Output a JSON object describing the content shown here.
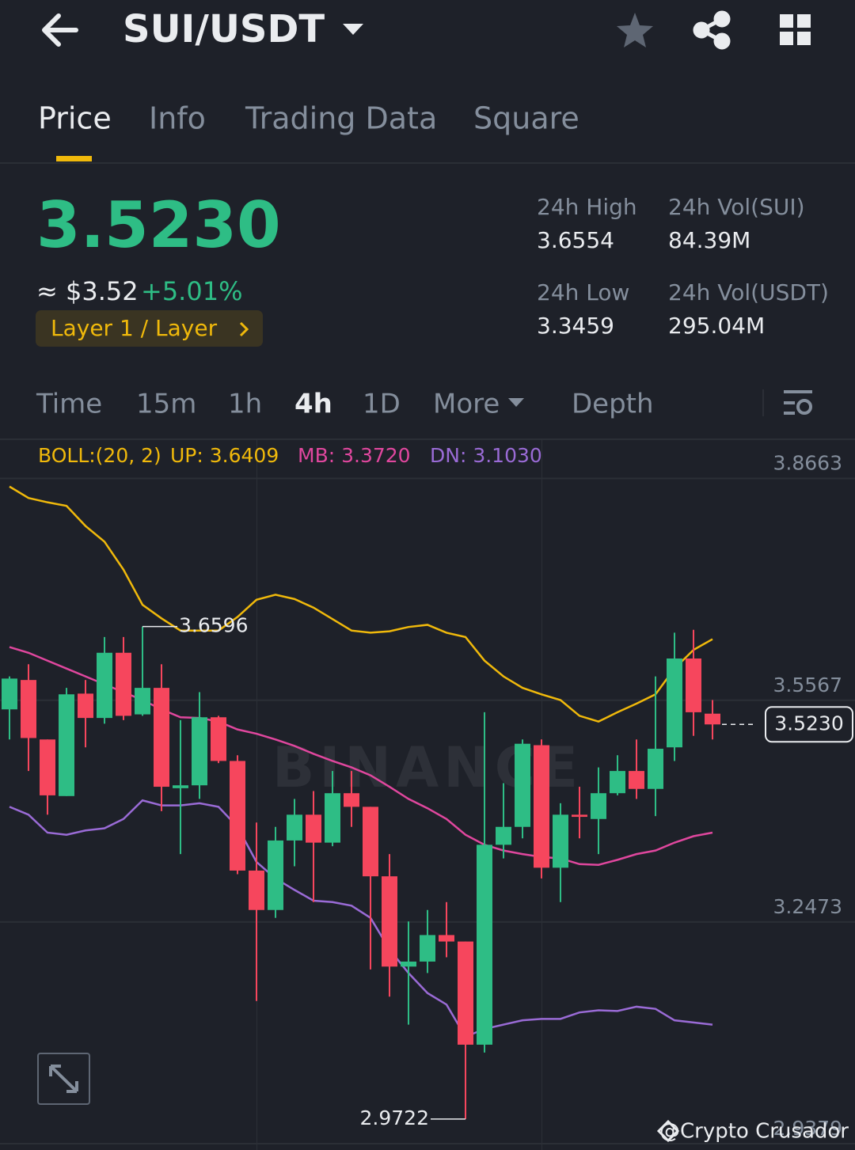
{
  "header": {
    "pair": "SUI/USDT"
  },
  "tabs": [
    "Price",
    "Info",
    "Trading Data",
    "Square"
  ],
  "price": {
    "last": "3.5230",
    "fiat": "≈ $3.52",
    "change": "+5.01%",
    "tag": "Layer 1 / Layer"
  },
  "stats": [
    {
      "label": "24h High",
      "value": "3.6554"
    },
    {
      "label": "24h Vol(SUI)",
      "value": "84.39M"
    },
    {
      "label": "24h Low",
      "value": "3.3459"
    },
    {
      "label": "24h Vol(USDT)",
      "value": "295.04M"
    }
  ],
  "intervals": [
    "Time",
    "15m",
    "1h",
    "4h",
    "1D",
    "More",
    "Depth"
  ],
  "chart_data": {
    "type": "candlestick",
    "indicator": "BOLL:(20, 2)",
    "up_color": "#2ebd85",
    "down_color": "#f6465d",
    "open": [
      3.544,
      3.585,
      3.502,
      3.423,
      3.566,
      3.532,
      3.623,
      3.537,
      3.574,
      3.434,
      3.438,
      3.533,
      3.472,
      3.319,
      3.264,
      3.361,
      3.397,
      3.358,
      3.427,
      3.408,
      3.311,
      3.185,
      3.192,
      3.229,
      3.22,
      3.076,
      3.355,
      3.38,
      3.494,
      3.323,
      3.397,
      3.391,
      3.427,
      3.458,
      3.433,
      3.491,
      3.615,
      3.538
    ],
    "high": [
      3.59,
      3.607,
      3.502,
      3.574,
      3.585,
      3.645,
      3.645,
      3.6596,
      3.607,
      3.529,
      3.568,
      3.535,
      3.48,
      3.386,
      3.38,
      3.419,
      3.43,
      3.458,
      3.458,
      3.408,
      3.342,
      3.248,
      3.264,
      3.275,
      3.22,
      3.54,
      3.441,
      3.502,
      3.502,
      3.413,
      3.436,
      3.463,
      3.48,
      3.502,
      3.59,
      3.651,
      3.655,
      3.557
    ],
    "low": [
      3.502,
      3.458,
      3.397,
      3.423,
      3.491,
      3.524,
      3.529,
      3.535,
      3.402,
      3.342,
      3.419,
      3.469,
      3.314,
      3.137,
      3.253,
      3.325,
      3.275,
      3.353,
      3.38,
      3.181,
      3.143,
      3.104,
      3.176,
      3.198,
      2.9722,
      3.065,
      3.336,
      3.364,
      3.308,
      3.275,
      3.364,
      3.342,
      3.424,
      3.419,
      3.395,
      3.472,
      3.507,
      3.502
    ],
    "close": [
      3.587,
      3.504,
      3.424,
      3.565,
      3.532,
      3.623,
      3.535,
      3.574,
      3.436,
      3.438,
      3.533,
      3.472,
      3.319,
      3.264,
      3.361,
      3.397,
      3.358,
      3.427,
      3.408,
      3.311,
      3.185,
      3.192,
      3.229,
      3.22,
      3.076,
      3.355,
      3.38,
      3.496,
      3.323,
      3.397,
      3.394,
      3.427,
      3.458,
      3.433,
      3.489,
      3.615,
      3.54,
      3.523
    ],
    "bands": [
      {
        "label": "UP: 3.6409",
        "color": "#f0b90b",
        "values": [
          3.855,
          3.839,
          3.833,
          3.828,
          3.8,
          3.778,
          3.739,
          3.69,
          3.671,
          3.654,
          3.654,
          3.654,
          3.673,
          3.697,
          3.704,
          3.698,
          3.686,
          3.67,
          3.654,
          3.651,
          3.653,
          3.659,
          3.662,
          3.651,
          3.645,
          3.612,
          3.59,
          3.574,
          3.565,
          3.557,
          3.535,
          3.527,
          3.54,
          3.552,
          3.565,
          3.601,
          3.627,
          3.642
        ]
      },
      {
        "label": "MB: 3.3720",
        "color": "#e0479e",
        "values": [
          3.631,
          3.623,
          3.612,
          3.601,
          3.59,
          3.579,
          3.568,
          3.557,
          3.544,
          3.533,
          3.532,
          3.527,
          3.516,
          3.51,
          3.502,
          3.493,
          3.482,
          3.472,
          3.463,
          3.452,
          3.436,
          3.419,
          3.406,
          3.391,
          3.369,
          3.355,
          3.347,
          3.342,
          3.338,
          3.336,
          3.328,
          3.327,
          3.334,
          3.342,
          3.347,
          3.358,
          3.367,
          3.372
        ]
      },
      {
        "label": "DN: 3.1030",
        "color": "#9a6bd6",
        "values": [
          3.408,
          3.397,
          3.372,
          3.369,
          3.375,
          3.378,
          3.391,
          3.417,
          3.41,
          3.41,
          3.413,
          3.408,
          3.38,
          3.331,
          3.308,
          3.292,
          3.277,
          3.275,
          3.27,
          3.253,
          3.209,
          3.176,
          3.148,
          3.132,
          3.087,
          3.098,
          3.104,
          3.11,
          3.112,
          3.112,
          3.121,
          3.124,
          3.123,
          3.129,
          3.126,
          3.11,
          3.107,
          3.104
        ]
      }
    ],
    "ylim": [
      2.929,
      3.921
    ],
    "yticks": [
      3.8663,
      3.5567,
      3.2473,
      2.9379
    ],
    "grid": true,
    "watermark": "BINANCE",
    "credit": "@Crypto Crusador"
  }
}
